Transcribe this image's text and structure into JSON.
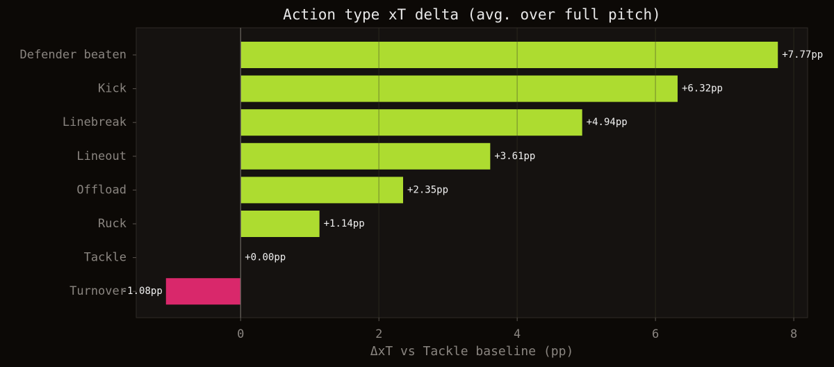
{
  "chart_data": {
    "type": "hbar",
    "title": "Action type xT delta (avg. over full pitch)",
    "x_label": "ΔxT vs Tackle baseline (pp)",
    "categories": [
      "Defender beaten",
      "Kick",
      "Linebreak",
      "Lineout",
      "Offload",
      "Ruck",
      "Tackle",
      "Turnover"
    ],
    "values": [
      7.77,
      6.32,
      4.94,
      3.61,
      2.35,
      1.14,
      0.0,
      -1.08
    ],
    "value_labels": [
      "+7.77pp",
      "+6.32pp",
      "+4.94pp",
      "+3.61pp",
      "+2.35pp",
      "+1.14pp",
      "+0.00pp",
      "-1.08pp"
    ],
    "colors": [
      "#addc30",
      "#addc30",
      "#addc30",
      "#addc30",
      "#addc30",
      "#addc30",
      "#addc30",
      "#d9286b"
    ],
    "xlim": [
      -1.51,
      8.2
    ],
    "xticks": [
      0,
      2,
      4,
      6,
      8
    ],
    "grid": true
  }
}
